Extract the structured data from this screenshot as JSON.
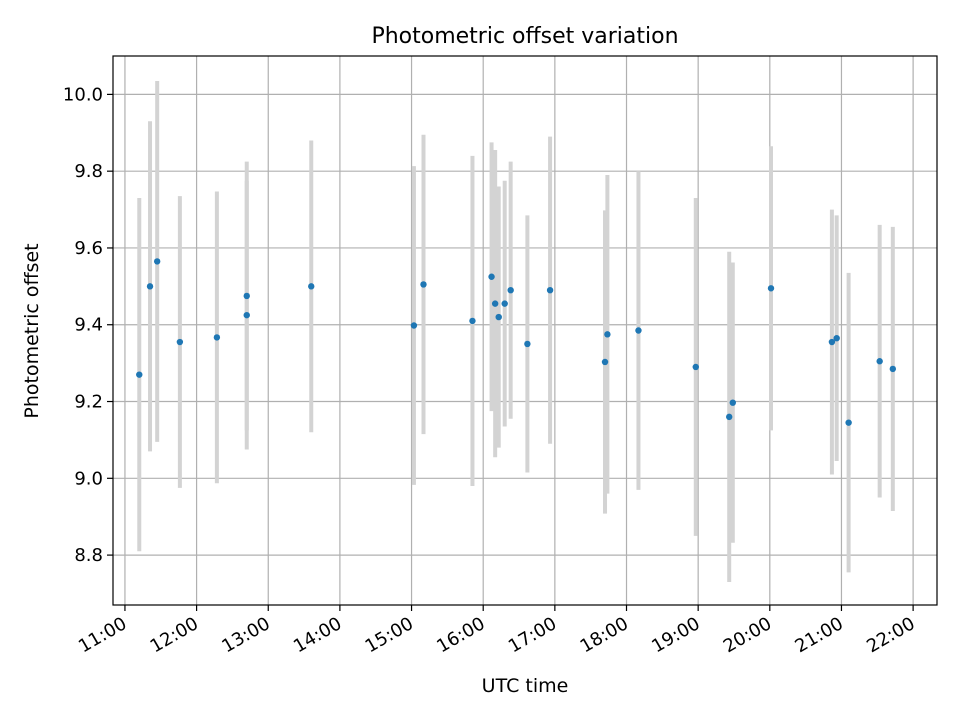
{
  "chart_data": {
    "type": "scatter",
    "title": "Photometric offset variation",
    "xlabel": "UTC time",
    "ylabel": "Photometric offset",
    "x_ticks": [
      "11:00",
      "12:00",
      "13:00",
      "14:00",
      "15:00",
      "16:00",
      "17:00",
      "18:00",
      "19:00",
      "20:00",
      "21:00",
      "22:00"
    ],
    "y_ticks": [
      "8.8",
      "9.0",
      "9.2",
      "9.4",
      "9.6",
      "9.8",
      "10.0"
    ],
    "xlim": [
      "10:50",
      "22:20"
    ],
    "ylim": [
      8.67,
      10.1
    ],
    "grid": true,
    "colors": {
      "point": "#1f77b4",
      "errorbar": "#d3d3d3",
      "grid": "#b0b0b0"
    },
    "points": [
      {
        "t": "11:12",
        "y": 9.27,
        "err": 0.46
      },
      {
        "t": "11:21",
        "y": 9.5,
        "err": 0.43
      },
      {
        "t": "11:27",
        "y": 9.565,
        "err": 0.47
      },
      {
        "t": "11:46",
        "y": 9.355,
        "err": 0.38
      },
      {
        "t": "12:17",
        "y": 9.367,
        "err": 0.38
      },
      {
        "t": "12:42",
        "y": 9.425,
        "err": 0.35
      },
      {
        "t": "12:42",
        "y": 9.475,
        "err": 0.35
      },
      {
        "t": "13:36",
        "y": 9.5,
        "err": 0.38
      },
      {
        "t": "15:02",
        "y": 9.398,
        "err": 0.415
      },
      {
        "t": "15:10",
        "y": 9.505,
        "err": 0.39
      },
      {
        "t": "15:51",
        "y": 9.41,
        "err": 0.43
      },
      {
        "t": "16:07",
        "y": 9.525,
        "err": 0.35
      },
      {
        "t": "16:10",
        "y": 9.455,
        "err": 0.4
      },
      {
        "t": "16:13",
        "y": 9.42,
        "err": 0.34
      },
      {
        "t": "16:18",
        "y": 9.455,
        "err": 0.32
      },
      {
        "t": "16:23",
        "y": 9.49,
        "err": 0.335
      },
      {
        "t": "16:37",
        "y": 9.35,
        "err": 0.335
      },
      {
        "t": "16:56",
        "y": 9.49,
        "err": 0.4
      },
      {
        "t": "17:42",
        "y": 9.303,
        "err": 0.395
      },
      {
        "t": "17:44",
        "y": 9.375,
        "err": 0.415
      },
      {
        "t": "18:10",
        "y": 9.385,
        "err": 0.415
      },
      {
        "t": "18:58",
        "y": 9.29,
        "err": 0.44
      },
      {
        "t": "19:26",
        "y": 9.16,
        "err": 0.43
      },
      {
        "t": "19:29",
        "y": 9.197,
        "err": 0.365
      },
      {
        "t": "20:01",
        "y": 9.495,
        "err": 0.37
      },
      {
        "t": "20:52",
        "y": 9.355,
        "err": 0.345
      },
      {
        "t": "20:56",
        "y": 9.365,
        "err": 0.32
      },
      {
        "t": "21:06",
        "y": 9.145,
        "err": 0.39
      },
      {
        "t": "21:32",
        "y": 9.305,
        "err": 0.355
      },
      {
        "t": "21:43",
        "y": 9.285,
        "err": 0.37
      }
    ]
  }
}
